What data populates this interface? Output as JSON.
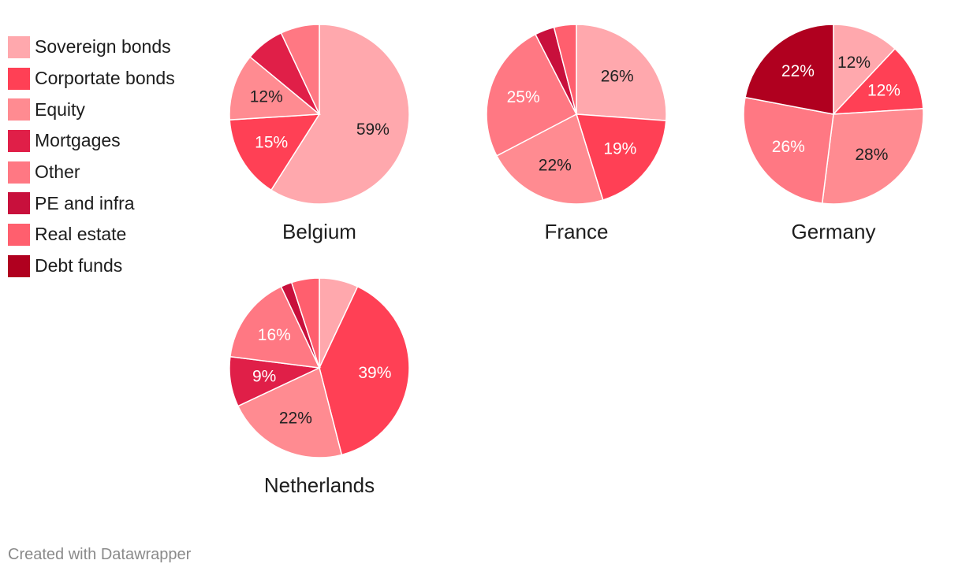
{
  "categories": [
    {
      "name": "Sovereign bonds",
      "color": "#ffa8ad",
      "label_color": "#222222"
    },
    {
      "name": "Corportate bonds",
      "color": "#ff4055",
      "label_color": "#ffffff"
    },
    {
      "name": "Equity",
      "color": "#ff8b91",
      "label_color": "#222222"
    },
    {
      "name": "Mortgages",
      "color": "#e01f48",
      "label_color": "#ffffff"
    },
    {
      "name": "Other",
      "color": "#ff7883",
      "label_color": "#ffffff"
    },
    {
      "name": "PE and infra",
      "color": "#c8103c",
      "label_color": "#ffffff"
    },
    {
      "name": "Real estate",
      "color": "#ff5f6e",
      "label_color": "#ffffff"
    },
    {
      "name": "Debt funds",
      "color": "#b0001f",
      "label_color": "#ffffff"
    }
  ],
  "chart_data": [
    {
      "type": "pie",
      "title": "Belgium",
      "categories": [
        "Sovereign bonds",
        "Corportate bonds",
        "Equity",
        "Mortgages",
        "Other"
      ],
      "values": [
        59,
        15,
        12,
        7,
        7
      ],
      "labels": [
        "59%",
        "15%",
        "12%",
        "",
        ""
      ]
    },
    {
      "type": "pie",
      "title": "France",
      "categories": [
        "Sovereign bonds",
        "Corportate bonds",
        "Equity",
        "Other",
        "PE and infra",
        "Real estate"
      ],
      "values": [
        26,
        19,
        22,
        25,
        3.5,
        4
      ],
      "labels": [
        "26%",
        "19%",
        "22%",
        "25%",
        "",
        ""
      ]
    },
    {
      "type": "pie",
      "title": "Germany",
      "categories": [
        "Sovereign bonds",
        "Corportate bonds",
        "Equity",
        "Other",
        "Debt funds"
      ],
      "values": [
        12,
        12,
        28,
        26,
        22
      ],
      "labels": [
        "12%",
        "12%",
        "28%",
        "26%",
        "22%"
      ]
    },
    {
      "type": "pie",
      "title": "Netherlands",
      "categories": [
        "Sovereign bonds",
        "Corportate bonds",
        "Equity",
        "Mortgages",
        "Other",
        "PE and infra",
        "Real estate"
      ],
      "values": [
        7,
        39,
        22,
        9,
        16,
        2,
        5
      ],
      "labels": [
        "",
        "39%",
        "22%",
        "9%",
        "16%",
        "",
        ""
      ]
    }
  ],
  "footer": "Created with Datawrapper"
}
